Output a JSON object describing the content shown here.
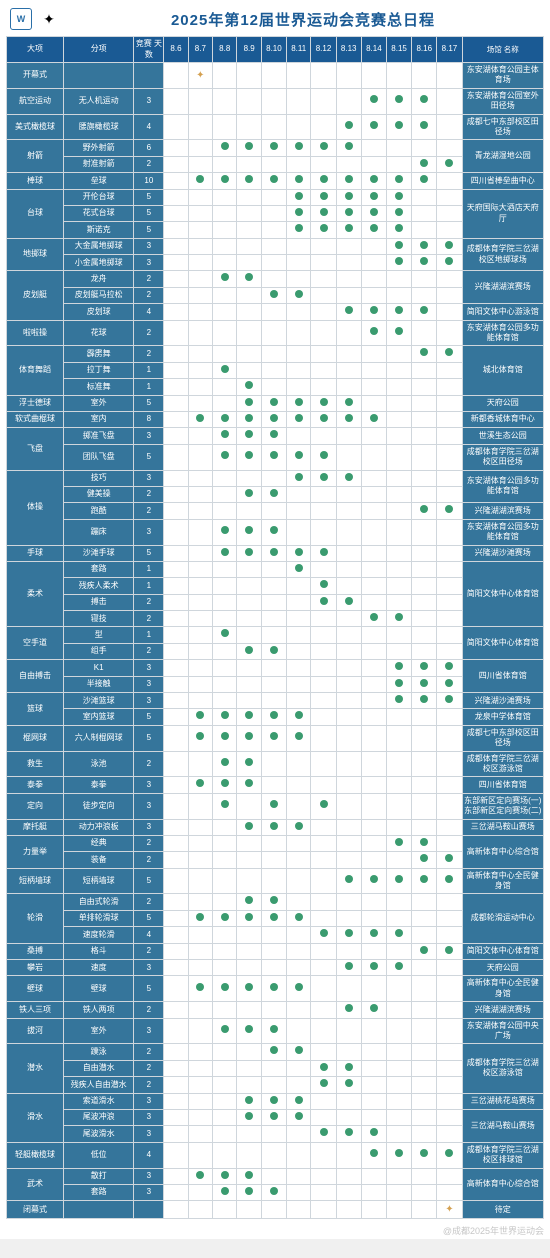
{
  "logo_text": "W",
  "title": "2025年第12届世界运动会竞赛总日程",
  "headers": {
    "cat": "大项",
    "sub": "分项",
    "days": "竞赛\n天数",
    "dates": [
      "8.6",
      "8.7",
      "8.8",
      "8.9",
      "8.10",
      "8.11",
      "8.12",
      "8.13",
      "8.14",
      "8.15",
      "8.16",
      "8.17"
    ],
    "venue": "场馆\n名称"
  },
  "watermark": "@成都2025年世界运动会",
  "colors": {
    "header": "#1a5a94",
    "body": "#35759b",
    "dot": "#3a9b6f",
    "border": "#cfd6dc"
  },
  "rows": [
    {
      "cat": "开幕式",
      "sub": "",
      "days": "",
      "d": [
        0,
        1,
        0,
        0,
        0,
        0,
        0,
        0,
        0,
        0,
        0,
        0
      ],
      "venue": "东安湖体育公园主体育场",
      "star": true
    },
    {
      "cat": "航空运动",
      "sub": "无人机运动",
      "days": "3",
      "d": [
        0,
        0,
        0,
        0,
        0,
        0,
        0,
        0,
        1,
        1,
        1,
        0
      ],
      "venue": "东安湖体育公园室外田径场"
    },
    {
      "cat": "美式橄榄球",
      "sub": "腰旗橄榄球",
      "days": "4",
      "d": [
        0,
        0,
        0,
        0,
        0,
        0,
        0,
        1,
        1,
        1,
        1,
        0
      ],
      "venue": "成都七中东部校区田径场"
    },
    {
      "cat": "射箭",
      "catspan": 2,
      "sub": "野外射箭",
      "days": "6",
      "d": [
        0,
        0,
        1,
        1,
        1,
        1,
        1,
        1,
        0,
        0,
        0,
        0
      ],
      "venue": "青龙湖湿地公园",
      "vspan": 2
    },
    {
      "sub": "射准射箭",
      "days": "2",
      "d": [
        0,
        0,
        0,
        0,
        0,
        0,
        0,
        0,
        0,
        0,
        1,
        1
      ]
    },
    {
      "cat": "棒球",
      "sub": "垒球",
      "days": "10",
      "d": [
        0,
        1,
        1,
        1,
        1,
        1,
        1,
        1,
        1,
        1,
        1,
        0
      ],
      "venue": "四川省棒垒曲中心"
    },
    {
      "cat": "台球",
      "catspan": 3,
      "sub": "开伦台球",
      "days": "5",
      "d": [
        0,
        0,
        0,
        0,
        0,
        1,
        1,
        1,
        1,
        1,
        0,
        0
      ],
      "venue": "天府国际大酒店天府厅",
      "vspan": 3
    },
    {
      "sub": "花式台球",
      "days": "5",
      "d": [
        0,
        0,
        0,
        0,
        0,
        1,
        1,
        1,
        1,
        1,
        0,
        0
      ]
    },
    {
      "sub": "斯诺克",
      "days": "5",
      "d": [
        0,
        0,
        0,
        0,
        0,
        1,
        1,
        1,
        1,
        1,
        0,
        0
      ]
    },
    {
      "cat": "地掷球",
      "catspan": 2,
      "sub": "大金属地掷球",
      "days": "3",
      "d": [
        0,
        0,
        0,
        0,
        0,
        0,
        0,
        0,
        0,
        1,
        1,
        1
      ],
      "venue": "成都体育学院三岔湖校区地掷球场",
      "vspan": 2
    },
    {
      "sub": "小金属地掷球",
      "days": "3",
      "d": [
        0,
        0,
        0,
        0,
        0,
        0,
        0,
        0,
        0,
        1,
        1,
        1
      ]
    },
    {
      "cat": "皮划艇",
      "catspan": 3,
      "sub": "龙舟",
      "days": "2",
      "d": [
        0,
        0,
        1,
        1,
        0,
        0,
        0,
        0,
        0,
        0,
        0,
        0
      ],
      "venue": "兴隆湖湖滨赛场",
      "vspan": 2
    },
    {
      "sub": "皮划艇马拉松",
      "days": "2",
      "d": [
        0,
        0,
        0,
        0,
        1,
        1,
        0,
        0,
        0,
        0,
        0,
        0
      ]
    },
    {
      "sub": "皮划球",
      "days": "4",
      "d": [
        0,
        0,
        0,
        0,
        0,
        0,
        0,
        1,
        1,
        1,
        1,
        0
      ],
      "venue": "简阳文体中心游泳馆"
    },
    {
      "cat": "啦啦操",
      "sub": "花球",
      "days": "2",
      "d": [
        0,
        0,
        0,
        0,
        0,
        0,
        0,
        0,
        1,
        1,
        0,
        0
      ],
      "venue": "东安湖体育公园多功能体育馆"
    },
    {
      "cat": "体育舞蹈",
      "catspan": 3,
      "sub": "霹雳舞",
      "days": "2",
      "d": [
        0,
        0,
        0,
        0,
        0,
        0,
        0,
        0,
        0,
        0,
        1,
        1
      ],
      "venue": "城北体育馆",
      "vspan": 3
    },
    {
      "sub": "拉丁舞",
      "days": "1",
      "d": [
        0,
        0,
        1,
        0,
        0,
        0,
        0,
        0,
        0,
        0,
        0,
        0
      ]
    },
    {
      "sub": "标准舞",
      "days": "1",
      "d": [
        0,
        0,
        0,
        1,
        0,
        0,
        0,
        0,
        0,
        0,
        0,
        0
      ]
    },
    {
      "cat": "浮士德球",
      "sub": "室外",
      "days": "5",
      "d": [
        0,
        0,
        0,
        1,
        1,
        1,
        1,
        1,
        0,
        0,
        0,
        0
      ],
      "venue": "天府公园"
    },
    {
      "cat": "软式曲棍球",
      "sub": "室内",
      "days": "8",
      "d": [
        0,
        1,
        1,
        1,
        1,
        1,
        1,
        1,
        1,
        0,
        0,
        0
      ],
      "venue": "新都香城体育中心"
    },
    {
      "cat": "飞盘",
      "catspan": 2,
      "sub": "掷准飞盘",
      "days": "3",
      "d": [
        0,
        0,
        1,
        1,
        1,
        0,
        0,
        0,
        0,
        0,
        0,
        0
      ],
      "venue": "世溪生态公园"
    },
    {
      "sub": "团队飞盘",
      "days": "5",
      "d": [
        0,
        0,
        1,
        1,
        1,
        1,
        1,
        0,
        0,
        0,
        0,
        0
      ],
      "venue": "成都体育学院三岔湖校区田径场"
    },
    {
      "cat": "体操",
      "catspan": 4,
      "sub": "技巧",
      "days": "3",
      "d": [
        0,
        0,
        0,
        0,
        0,
        1,
        1,
        1,
        0,
        0,
        0,
        0
      ],
      "venue": "东安湖体育公园多功能体育馆",
      "vspan": 2
    },
    {
      "sub": "健美操",
      "days": "2",
      "d": [
        0,
        0,
        0,
        1,
        1,
        0,
        0,
        0,
        0,
        0,
        0,
        0
      ]
    },
    {
      "sub": "跑酷",
      "days": "2",
      "d": [
        0,
        0,
        0,
        0,
        0,
        0,
        0,
        0,
        0,
        0,
        1,
        1
      ],
      "venue": "兴隆湖湖滨赛场"
    },
    {
      "sub": "蹦床",
      "days": "3",
      "d": [
        0,
        0,
        1,
        1,
        1,
        0,
        0,
        0,
        0,
        0,
        0,
        0
      ],
      "venue": "东安湖体育公园多功能体育馆"
    },
    {
      "cat": "手球",
      "sub": "沙滩手球",
      "days": "5",
      "d": [
        0,
        0,
        1,
        1,
        1,
        1,
        1,
        0,
        0,
        0,
        0,
        0
      ],
      "venue": "兴隆湖沙滩赛场"
    },
    {
      "cat": "柔术",
      "catspan": 4,
      "sub": "套路",
      "days": "1",
      "d": [
        0,
        0,
        0,
        0,
        0,
        1,
        0,
        0,
        0,
        0,
        0,
        0
      ],
      "venue": "简阳文体中心体育馆",
      "vspan": 4
    },
    {
      "sub": "残疾人柔术",
      "days": "1",
      "d": [
        0,
        0,
        0,
        0,
        0,
        0,
        1,
        0,
        0,
        0,
        0,
        0
      ]
    },
    {
      "sub": "搏击",
      "days": "2",
      "d": [
        0,
        0,
        0,
        0,
        0,
        0,
        1,
        1,
        0,
        0,
        0,
        0
      ]
    },
    {
      "sub": "寝技",
      "days": "2",
      "d": [
        0,
        0,
        0,
        0,
        0,
        0,
        0,
        0,
        1,
        1,
        0,
        0
      ]
    },
    {
      "cat": "空手道",
      "catspan": 2,
      "sub": "型",
      "days": "1",
      "d": [
        0,
        0,
        1,
        0,
        0,
        0,
        0,
        0,
        0,
        0,
        0,
        0
      ],
      "venue": "简阳文体中心体育馆",
      "vspan": 2
    },
    {
      "sub": "组手",
      "days": "2",
      "d": [
        0,
        0,
        0,
        1,
        1,
        0,
        0,
        0,
        0,
        0,
        0,
        0
      ]
    },
    {
      "cat": "自由搏击",
      "catspan": 2,
      "sub": "K1",
      "days": "3",
      "d": [
        0,
        0,
        0,
        0,
        0,
        0,
        0,
        0,
        0,
        1,
        1,
        1
      ],
      "venue": "四川省体育馆",
      "vspan": 2
    },
    {
      "sub": "半接触",
      "days": "3",
      "d": [
        0,
        0,
        0,
        0,
        0,
        0,
        0,
        0,
        0,
        1,
        1,
        1
      ]
    },
    {
      "cat": "篮球",
      "catspan": 2,
      "sub": "沙滩篮球",
      "days": "3",
      "d": [
        0,
        0,
        0,
        0,
        0,
        0,
        0,
        0,
        0,
        1,
        1,
        1
      ],
      "venue": "兴隆湖沙滩赛场"
    },
    {
      "sub": "室内篮球",
      "days": "5",
      "d": [
        0,
        1,
        1,
        1,
        1,
        1,
        0,
        0,
        0,
        0,
        0,
        0
      ],
      "venue": "龙泉中学体育馆"
    },
    {
      "cat": "棍网球",
      "sub": "六人制棍网球",
      "days": "5",
      "d": [
        0,
        1,
        1,
        1,
        1,
        1,
        0,
        0,
        0,
        0,
        0,
        0
      ],
      "venue": "成都七中东部校区田径场"
    },
    {
      "cat": "救生",
      "sub": "泳池",
      "days": "2",
      "d": [
        0,
        0,
        1,
        1,
        0,
        0,
        0,
        0,
        0,
        0,
        0,
        0
      ],
      "venue": "成都体育学院三岔湖校区游泳馆"
    },
    {
      "cat": "泰拳",
      "sub": "泰拳",
      "days": "3",
      "d": [
        0,
        1,
        1,
        1,
        0,
        0,
        0,
        0,
        0,
        0,
        0,
        0
      ],
      "venue": "四川省体育馆"
    },
    {
      "cat": "定向",
      "sub": "徒步定向",
      "days": "3",
      "d": [
        0,
        0,
        1,
        0,
        1,
        0,
        1,
        0,
        0,
        0,
        0,
        0
      ],
      "venue": "东部新区定向赛场(一)\n东部新区定向赛场(二)"
    },
    {
      "cat": "摩托艇",
      "sub": "动力冲浪板",
      "days": "3",
      "d": [
        0,
        0,
        0,
        1,
        1,
        1,
        0,
        0,
        0,
        0,
        0,
        0
      ],
      "venue": "三岔湖马鞍山赛场"
    },
    {
      "cat": "力量举",
      "catspan": 2,
      "sub": "经典",
      "days": "2",
      "d": [
        0,
        0,
        0,
        0,
        0,
        0,
        0,
        0,
        0,
        1,
        1,
        0
      ],
      "venue": "高新体育中心综合馆",
      "vspan": 2
    },
    {
      "sub": "装备",
      "days": "2",
      "d": [
        0,
        0,
        0,
        0,
        0,
        0,
        0,
        0,
        0,
        0,
        1,
        1
      ]
    },
    {
      "cat": "短柄墙球",
      "sub": "短柄墙球",
      "days": "5",
      "d": [
        0,
        0,
        0,
        0,
        0,
        0,
        0,
        1,
        1,
        1,
        1,
        1
      ],
      "venue": "高新体育中心全民健身馆"
    },
    {
      "cat": "轮滑",
      "catspan": 3,
      "sub": "自由式轮滑",
      "days": "2",
      "d": [
        0,
        0,
        0,
        1,
        1,
        0,
        0,
        0,
        0,
        0,
        0,
        0
      ],
      "venue": "成都轮滑运动中心",
      "vspan": 3
    },
    {
      "sub": "单排轮滑球",
      "days": "5",
      "d": [
        0,
        1,
        1,
        1,
        1,
        1,
        0,
        0,
        0,
        0,
        0,
        0
      ]
    },
    {
      "sub": "速度轮滑",
      "days": "4",
      "d": [
        0,
        0,
        0,
        0,
        0,
        0,
        1,
        1,
        1,
        1,
        0,
        0
      ]
    },
    {
      "cat": "桑搏",
      "sub": "格斗",
      "days": "2",
      "d": [
        0,
        0,
        0,
        0,
        0,
        0,
        0,
        0,
        0,
        0,
        1,
        1
      ],
      "venue": "简阳文体中心体育馆"
    },
    {
      "cat": "攀岩",
      "sub": "速度",
      "days": "3",
      "d": [
        0,
        0,
        0,
        0,
        0,
        0,
        0,
        1,
        1,
        1,
        0,
        0
      ],
      "venue": "天府公园"
    },
    {
      "cat": "壁球",
      "sub": "壁球",
      "days": "5",
      "d": [
        0,
        1,
        1,
        1,
        1,
        1,
        0,
        0,
        0,
        0,
        0,
        0
      ],
      "venue": "高新体育中心全民健身馆"
    },
    {
      "cat": "铁人三项",
      "sub": "铁人两项",
      "days": "2",
      "d": [
        0,
        0,
        0,
        0,
        0,
        0,
        0,
        1,
        1,
        0,
        0,
        0
      ],
      "venue": "兴隆湖湖滨赛场"
    },
    {
      "cat": "拔河",
      "sub": "室外",
      "days": "3",
      "d": [
        0,
        0,
        1,
        1,
        1,
        0,
        0,
        0,
        0,
        0,
        0,
        0
      ],
      "venue": "东安湖体育公园中央广场"
    },
    {
      "cat": "潜水",
      "catspan": 3,
      "sub": "蹼泳",
      "days": "2",
      "d": [
        0,
        0,
        0,
        0,
        1,
        1,
        0,
        0,
        0,
        0,
        0,
        0
      ],
      "venue": "成都体育学院三岔湖校区游泳馆",
      "vspan": 3
    },
    {
      "sub": "自由潜水",
      "days": "2",
      "d": [
        0,
        0,
        0,
        0,
        0,
        0,
        1,
        1,
        0,
        0,
        0,
        0
      ]
    },
    {
      "sub": "残疾人自由潜水",
      "days": "2",
      "d": [
        0,
        0,
        0,
        0,
        0,
        0,
        1,
        1,
        0,
        0,
        0,
        0
      ]
    },
    {
      "cat": "滑水",
      "catspan": 3,
      "sub": "索道滑水",
      "days": "3",
      "d": [
        0,
        0,
        0,
        1,
        1,
        1,
        0,
        0,
        0,
        0,
        0,
        0
      ],
      "venue": "三岔湖桃花岛赛场"
    },
    {
      "sub": "尾波冲浪",
      "days": "3",
      "d": [
        0,
        0,
        0,
        1,
        1,
        1,
        0,
        0,
        0,
        0,
        0,
        0
      ],
      "venue": "三岔湖马鞍山赛场",
      "vspan": 2
    },
    {
      "sub": "尾波滑水",
      "days": "3",
      "d": [
        0,
        0,
        0,
        0,
        0,
        0,
        1,
        1,
        1,
        0,
        0,
        0
      ]
    },
    {
      "cat": "轻艇橄榄球",
      "sub": "低位",
      "days": "4",
      "d": [
        0,
        0,
        0,
        0,
        0,
        0,
        0,
        0,
        1,
        1,
        1,
        1
      ],
      "venue": "成都体育学院三岔湖校区排球馆"
    },
    {
      "cat": "武术",
      "catspan": 2,
      "sub": "散打",
      "days": "3",
      "d": [
        0,
        1,
        1,
        1,
        0,
        0,
        0,
        0,
        0,
        0,
        0,
        0
      ],
      "venue": "高新体育中心综合馆",
      "vspan": 2
    },
    {
      "sub": "套路",
      "days": "3",
      "d": [
        0,
        0,
        1,
        1,
        1,
        0,
        0,
        0,
        0,
        0,
        0,
        0
      ]
    },
    {
      "cat": "闭幕式",
      "sub": "",
      "days": "",
      "d": [
        0,
        0,
        0,
        0,
        0,
        0,
        0,
        0,
        0,
        0,
        0,
        2
      ],
      "venue": "待定",
      "star": true
    }
  ]
}
